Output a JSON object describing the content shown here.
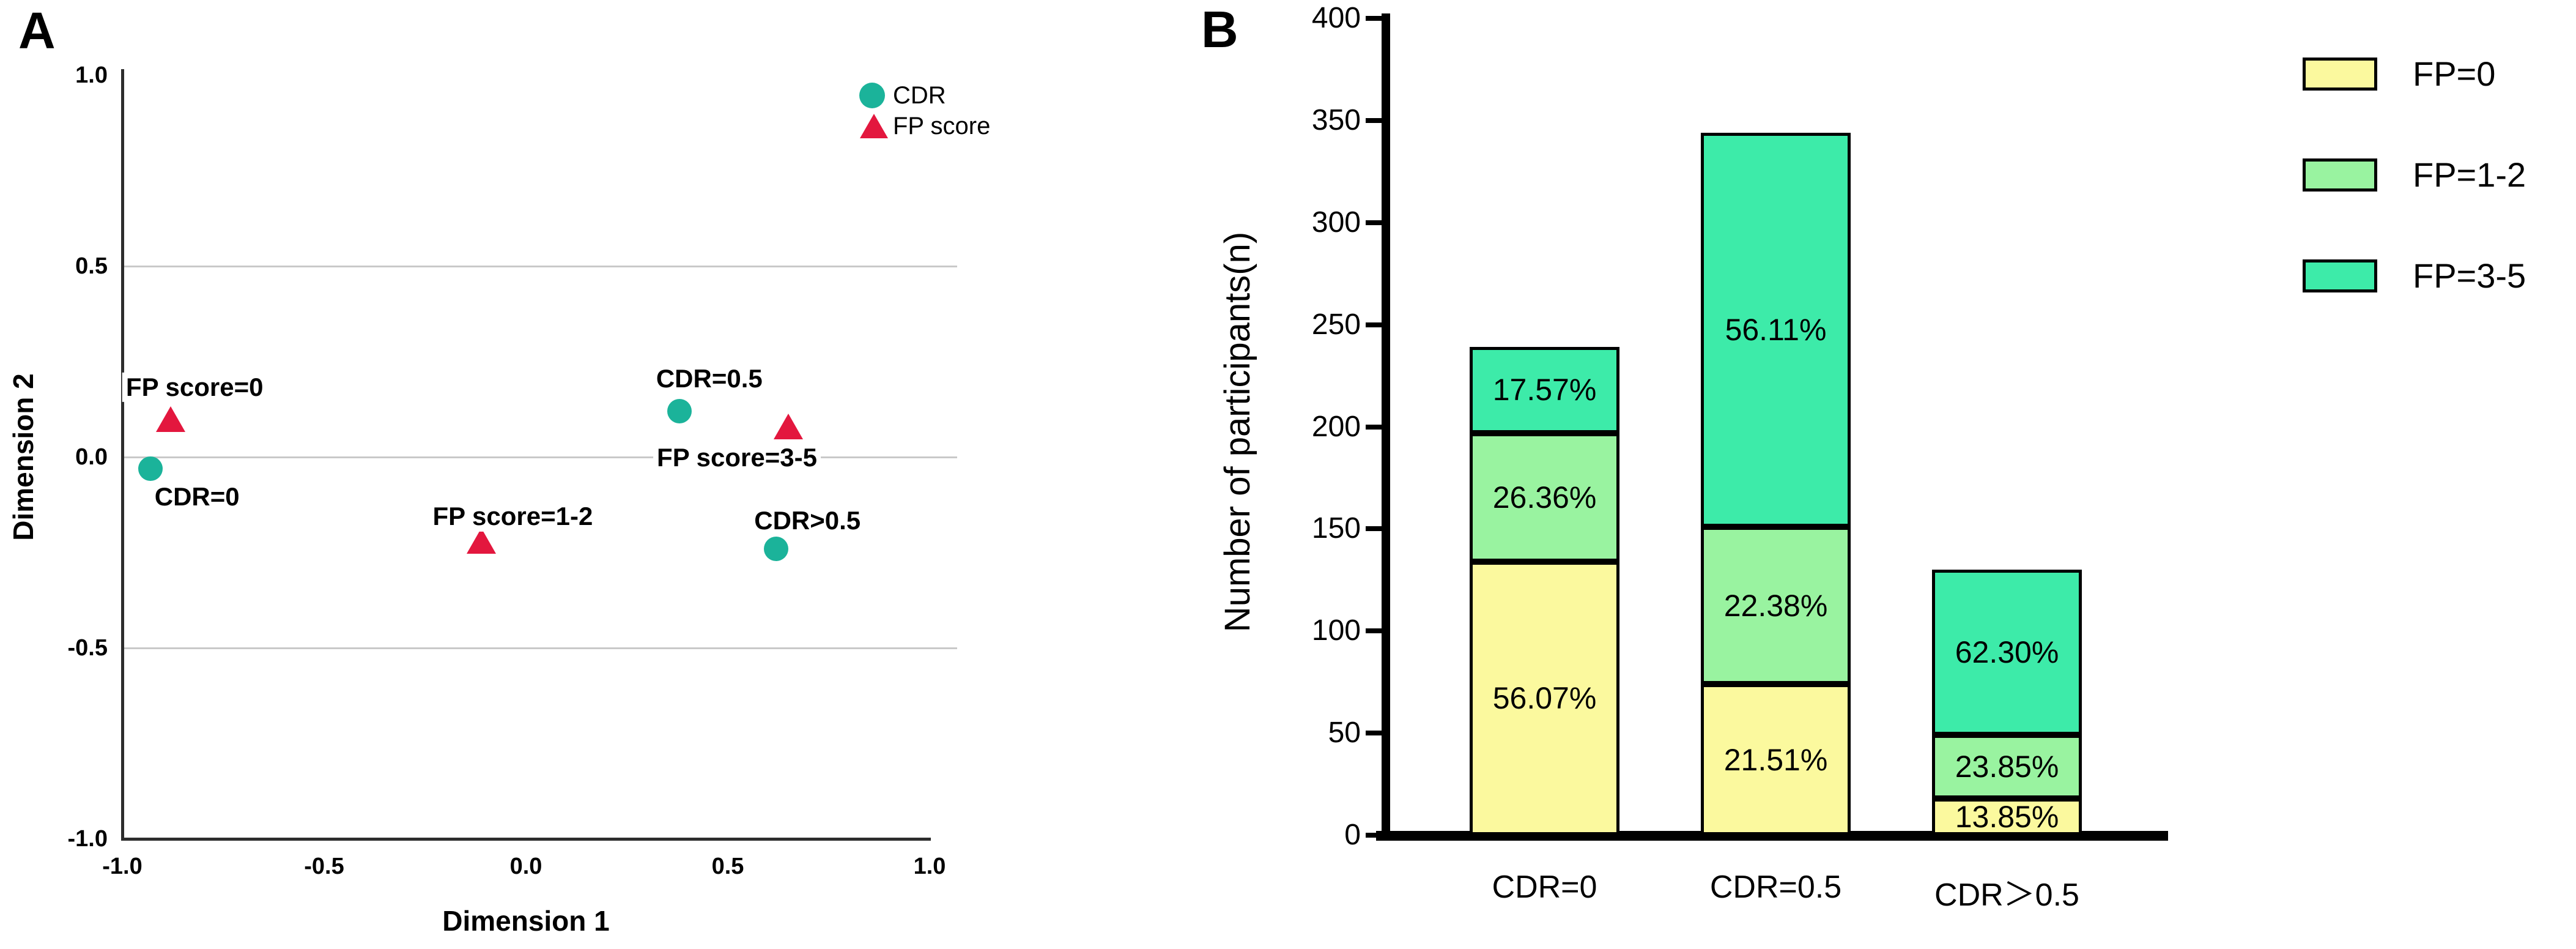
{
  "figure": {
    "panel_a_letter": "A",
    "panel_b_letter": "B"
  },
  "chart_data": [
    {
      "panel": "A",
      "type": "scatter",
      "title": "",
      "xlabel": "Dimension 1",
      "ylabel": "Dimension 2",
      "xlim": [
        -1.0,
        1.0
      ],
      "ylim": [
        -1.0,
        1.0
      ],
      "xticks": [
        "-1.0",
        "-0.5",
        "0.0",
        "0.5",
        "1.0"
      ],
      "yticks": [
        "1.0",
        "0.5",
        "0.0",
        "-0.5",
        "-1.0"
      ],
      "grid_y": [
        "0.5",
        "0.0",
        "-0.5"
      ],
      "grid_color": "#c9c9c9",
      "legend_position": "top-right",
      "legend": [
        {
          "name": "CDR",
          "marker": "circle",
          "color": "#1bb39a"
        },
        {
          "name": "FP score",
          "marker": "triangle",
          "color": "#e3173e"
        }
      ],
      "points": [
        {
          "series": "FP score",
          "label": "FP score=0",
          "x": -0.88,
          "y": 0.1,
          "label_offset": [
            39,
            -52
          ]
        },
        {
          "series": "CDR",
          "label": "CDR=0",
          "x": -0.93,
          "y": -0.03,
          "label_offset": [
            76,
            46
          ]
        },
        {
          "series": "FP score",
          "label": "FP score=1-2",
          "x": -0.11,
          "y": -0.22,
          "label_offset": [
            51,
            -40
          ]
        },
        {
          "series": "CDR",
          "label": "CDR=0.5",
          "x": 0.38,
          "y": 0.12,
          "label_offset": [
            49,
            -53
          ]
        },
        {
          "series": "FP score",
          "label": "FP score=3-5",
          "x": 0.65,
          "y": 0.08,
          "label_offset": [
            -84,
            51
          ]
        },
        {
          "series": "CDR",
          "label": "CDR>0.5",
          "x": 0.62,
          "y": -0.24,
          "label_offset": [
            51,
            -46
          ]
        }
      ]
    },
    {
      "panel": "B",
      "type": "bar",
      "stacked": true,
      "title": "",
      "xlabel": "",
      "ylabel": "Number of participants(n)",
      "ylim": [
        0,
        400
      ],
      "yticks": [
        400,
        350,
        300,
        250,
        200,
        150,
        100,
        50,
        0
      ],
      "categories": [
        "CDR=0",
        "CDR=0.5",
        "CDR＞0.5"
      ],
      "totals": [
        239,
        344,
        130
      ],
      "series": [
        {
          "name": "FP=0",
          "color": "#fbf99e",
          "values": [
            134,
            74,
            18
          ],
          "labels": [
            "56.07%",
            "21.51%",
            "13.85%"
          ]
        },
        {
          "name": "FP=1-2",
          "color": "#99f3a0",
          "values": [
            63,
            77,
            31
          ],
          "labels": [
            "26.36%",
            "22.38%",
            "23.85%"
          ]
        },
        {
          "name": "FP=3-5",
          "color": "#3deba9",
          "values": [
            42,
            193,
            81
          ],
          "labels": [
            "17.57%",
            "56.11%",
            "62.30%"
          ]
        }
      ],
      "legend_position": "top-right"
    }
  ]
}
